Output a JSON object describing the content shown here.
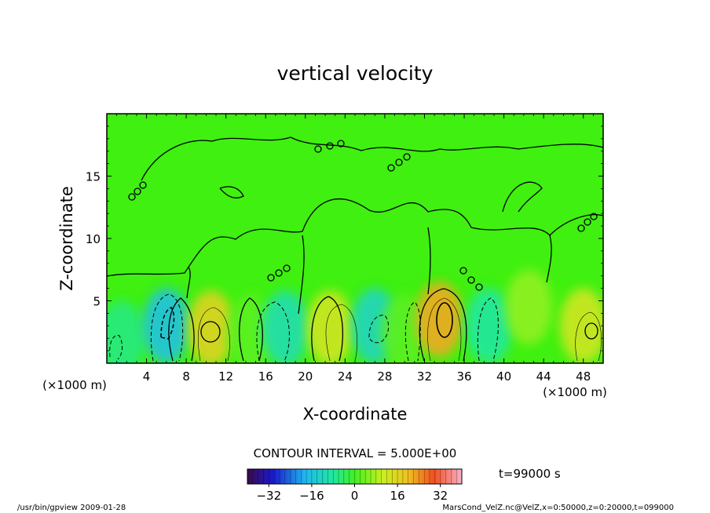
{
  "chart_data": {
    "type": "heatmap",
    "title": "vertical velocity",
    "xlabel": "X-coordinate",
    "ylabel": "Z-coordinate",
    "x_unit_left": "(×1000 m)",
    "x_unit_right": "(×1000 m)",
    "xlim": [
      0,
      50
    ],
    "ylim": [
      0,
      20
    ],
    "x_ticks": [
      "4",
      "8",
      "12",
      "16",
      "20",
      "24",
      "28",
      "32",
      "36",
      "40",
      "44",
      "48"
    ],
    "y_ticks": [
      "5",
      "10",
      "15"
    ],
    "contour_interval_label": "CONTOUR INTERVAL = 5.000E+00",
    "time_label": "t=99000 s",
    "colorbar": {
      "min": -40,
      "max": 40,
      "ticks": [
        "−32",
        "−16",
        "0",
        "16",
        "32"
      ]
    },
    "cells": [
      {
        "x": 1.5,
        "z": 2.0,
        "value": -6
      },
      {
        "x": 6.0,
        "z": 3.0,
        "value": -16
      },
      {
        "x": 10.5,
        "z": 2.8,
        "value": 16
      },
      {
        "x": 14.5,
        "z": 2.5,
        "value": 2
      },
      {
        "x": 18.0,
        "z": 2.8,
        "value": -10
      },
      {
        "x": 22.5,
        "z": 2.8,
        "value": 12
      },
      {
        "x": 27.0,
        "z": 3.0,
        "value": -12
      },
      {
        "x": 30.0,
        "z": 2.5,
        "value": 2
      },
      {
        "x": 33.5,
        "z": 3.5,
        "value": 22
      },
      {
        "x": 38.5,
        "z": 3.0,
        "value": -8
      },
      {
        "x": 42.5,
        "z": 4.5,
        "value": 6
      },
      {
        "x": 48.0,
        "z": 3.0,
        "value": 12
      }
    ],
    "grid": false,
    "legend": "bottom-center"
  },
  "footer": {
    "left": "/usr/bin/gpview   2009-01-28",
    "right": "MarsCond_VelZ.nc@VelZ,x=0:50000,z=0:20000,t=099000"
  },
  "colors": {
    "background": "#3ff010",
    "axis": "#000000"
  }
}
